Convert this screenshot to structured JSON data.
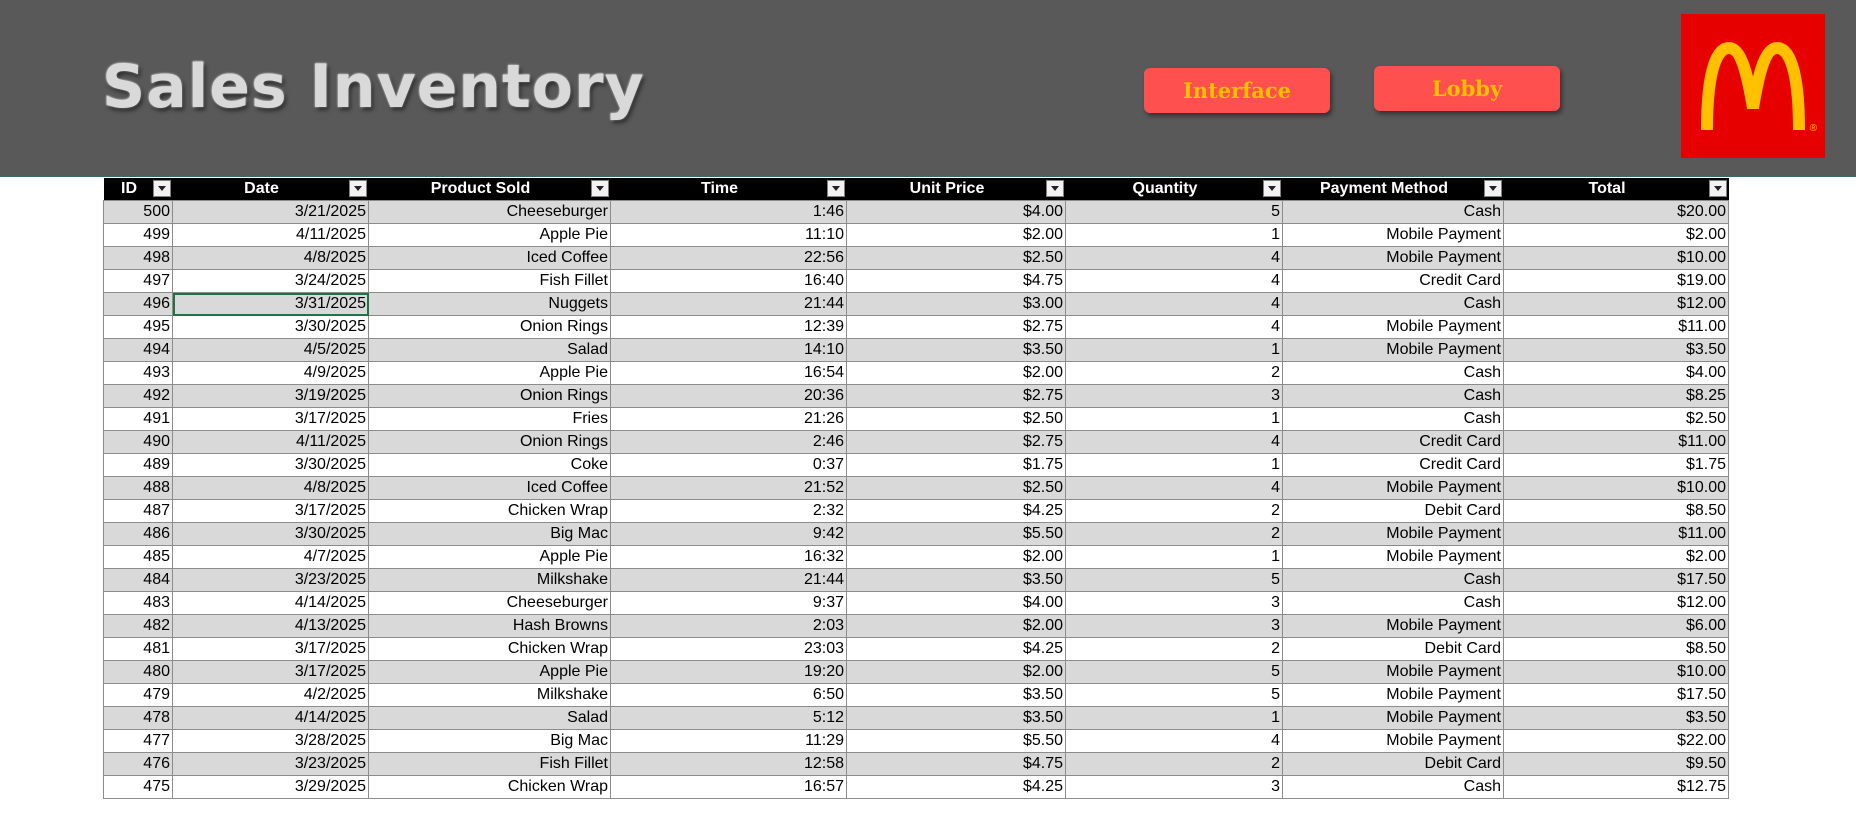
{
  "header": {
    "title": "Sales Inventory",
    "buttons": {
      "interface": "Interface",
      "lobby": "Lobby"
    },
    "logo_icon": "mcdonalds-golden-arches-icon",
    "logo_mark": "®",
    "colors": {
      "banner": "#595959",
      "button": "#ff5050",
      "button_text": "#ffc000",
      "logo_bg": "#e60000"
    }
  },
  "table": {
    "columns": [
      "ID",
      "Date",
      "Product Sold",
      "Time",
      "Unit Price",
      "Quantity",
      "Payment Method",
      "Total"
    ],
    "rows": [
      [
        "500",
        "3/21/2025",
        "Cheeseburger",
        "1:46",
        "$4.00",
        "5",
        "Cash",
        "$20.00"
      ],
      [
        "499",
        "4/11/2025",
        "Apple Pie",
        "11:10",
        "$2.00",
        "1",
        "Mobile Payment",
        "$2.00"
      ],
      [
        "498",
        "4/8/2025",
        "Iced Coffee",
        "22:56",
        "$2.50",
        "4",
        "Mobile Payment",
        "$10.00"
      ],
      [
        "497",
        "3/24/2025",
        "Fish Fillet",
        "16:40",
        "$4.75",
        "4",
        "Credit Card",
        "$19.00"
      ],
      [
        "496",
        "3/31/2025",
        "Nuggets",
        "21:44",
        "$3.00",
        "4",
        "Cash",
        "$12.00"
      ],
      [
        "495",
        "3/30/2025",
        "Onion Rings",
        "12:39",
        "$2.75",
        "4",
        "Mobile Payment",
        "$11.00"
      ],
      [
        "494",
        "4/5/2025",
        "Salad",
        "14:10",
        "$3.50",
        "1",
        "Mobile Payment",
        "$3.50"
      ],
      [
        "493",
        "4/9/2025",
        "Apple Pie",
        "16:54",
        "$2.00",
        "2",
        "Cash",
        "$4.00"
      ],
      [
        "492",
        "3/19/2025",
        "Onion Rings",
        "20:36",
        "$2.75",
        "3",
        "Cash",
        "$8.25"
      ],
      [
        "491",
        "3/17/2025",
        "Fries",
        "21:26",
        "$2.50",
        "1",
        "Cash",
        "$2.50"
      ],
      [
        "490",
        "4/11/2025",
        "Onion Rings",
        "2:46",
        "$2.75",
        "4",
        "Credit Card",
        "$11.00"
      ],
      [
        "489",
        "3/30/2025",
        "Coke",
        "0:37",
        "$1.75",
        "1",
        "Credit Card",
        "$1.75"
      ],
      [
        "488",
        "4/8/2025",
        "Iced Coffee",
        "21:52",
        "$2.50",
        "4",
        "Mobile Payment",
        "$10.00"
      ],
      [
        "487",
        "3/17/2025",
        "Chicken Wrap",
        "2:32",
        "$4.25",
        "2",
        "Debit Card",
        "$8.50"
      ],
      [
        "486",
        "3/30/2025",
        "Big Mac",
        "9:42",
        "$5.50",
        "2",
        "Mobile Payment",
        "$11.00"
      ],
      [
        "485",
        "4/7/2025",
        "Apple Pie",
        "16:32",
        "$2.00",
        "1",
        "Mobile Payment",
        "$2.00"
      ],
      [
        "484",
        "3/23/2025",
        "Milkshake",
        "21:44",
        "$3.50",
        "5",
        "Cash",
        "$17.50"
      ],
      [
        "483",
        "4/14/2025",
        "Cheeseburger",
        "9:37",
        "$4.00",
        "3",
        "Cash",
        "$12.00"
      ],
      [
        "482",
        "4/13/2025",
        "Hash Browns",
        "2:03",
        "$2.00",
        "3",
        "Mobile Payment",
        "$6.00"
      ],
      [
        "481",
        "3/17/2025",
        "Chicken Wrap",
        "23:03",
        "$4.25",
        "2",
        "Debit Card",
        "$8.50"
      ],
      [
        "480",
        "3/17/2025",
        "Apple Pie",
        "19:20",
        "$2.00",
        "5",
        "Mobile Payment",
        "$10.00"
      ],
      [
        "479",
        "4/2/2025",
        "Milkshake",
        "6:50",
        "$3.50",
        "5",
        "Mobile Payment",
        "$17.50"
      ],
      [
        "478",
        "4/14/2025",
        "Salad",
        "5:12",
        "$3.50",
        "1",
        "Mobile Payment",
        "$3.50"
      ],
      [
        "477",
        "3/28/2025",
        "Big Mac",
        "11:29",
        "$5.50",
        "4",
        "Mobile Payment",
        "$22.00"
      ],
      [
        "476",
        "3/23/2025",
        "Fish Fillet",
        "12:58",
        "$4.75",
        "2",
        "Debit Card",
        "$9.50"
      ],
      [
        "475",
        "3/29/2025",
        "Chicken Wrap",
        "16:57",
        "$4.25",
        "3",
        "Cash",
        "$12.75"
      ]
    ],
    "selected_cell": {
      "row": 4,
      "column": 1
    }
  }
}
